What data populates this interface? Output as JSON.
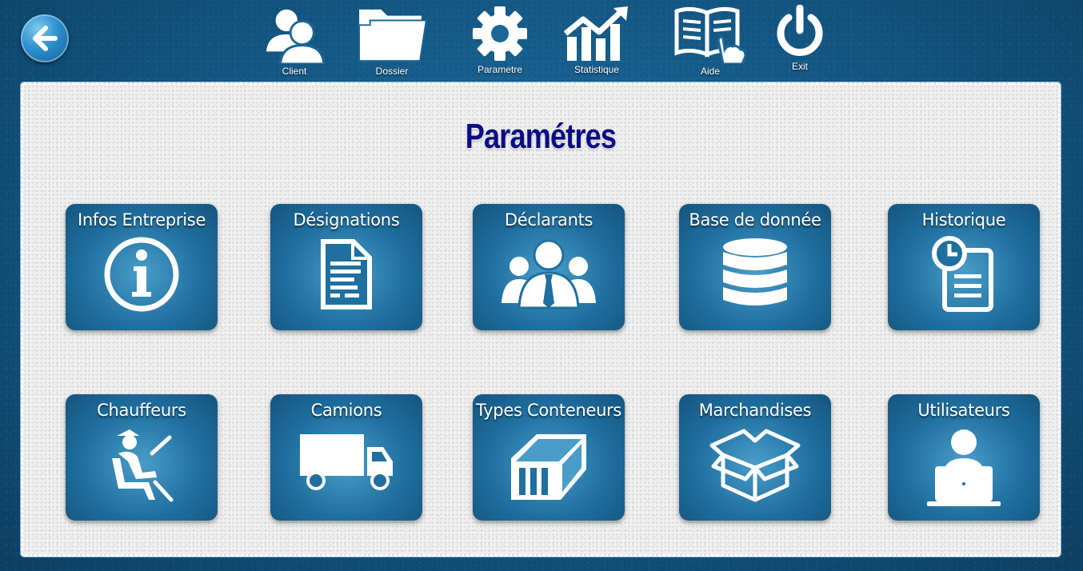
{
  "toolbar": {
    "items": [
      {
        "id": "client",
        "label": "Client",
        "icon": "users-icon"
      },
      {
        "id": "dossier",
        "label": "Dossier",
        "icon": "folder-icon"
      },
      {
        "id": "parametre",
        "label": "Parametre",
        "icon": "gear-icon"
      },
      {
        "id": "statistique",
        "label": "Statistique",
        "icon": "chart-icon"
      },
      {
        "id": "aide",
        "label": "Aide",
        "icon": "help-book-icon"
      },
      {
        "id": "exit",
        "label": "Exit",
        "icon": "power-icon"
      }
    ]
  },
  "page": {
    "title": "Paramétres"
  },
  "tiles": [
    {
      "label": "Infos Entreprise",
      "icon": "info-icon"
    },
    {
      "label": "Désignations",
      "icon": "document-icon"
    },
    {
      "label": "Déclarants",
      "icon": "people-group-icon"
    },
    {
      "label": "Base de donnée",
      "icon": "database-icon"
    },
    {
      "label": "Historique",
      "icon": "history-icon"
    },
    {
      "label": "Chauffeurs",
      "icon": "driver-icon"
    },
    {
      "label": "Camions",
      "icon": "truck-icon"
    },
    {
      "label": "Types Conteneurs",
      "icon": "container-icon"
    },
    {
      "label": "Marchandises",
      "icon": "box-icon"
    },
    {
      "label": "Utilisateurs",
      "icon": "user-laptop-icon"
    }
  ],
  "colors": {
    "title": "#0b0b86",
    "tile": "#1f6f9f",
    "background": "#155a87"
  }
}
